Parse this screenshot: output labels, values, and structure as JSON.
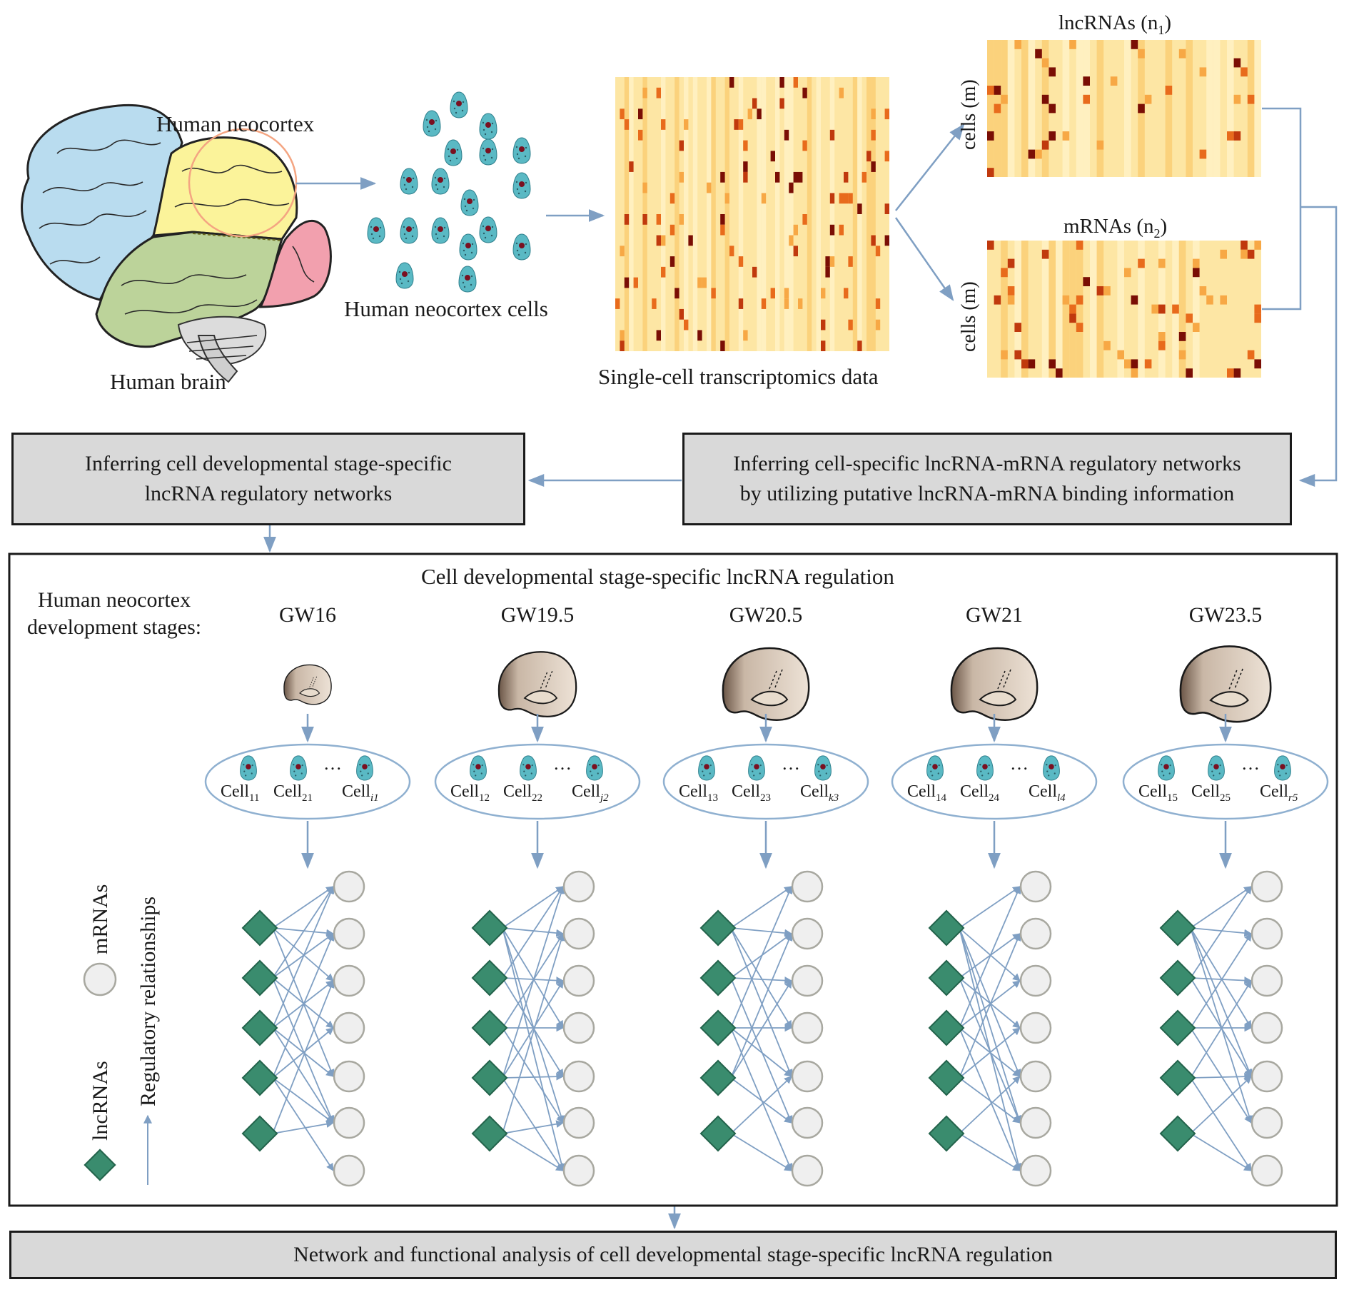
{
  "top": {
    "brain_label": "Human brain",
    "region_label": "Human neocortex",
    "cells_label": "Human neocortex cells",
    "data_label": "Single-cell transcriptomics data",
    "lnc_matrix_title": "lncRNAs (n",
    "lnc_matrix_sub": "1",
    "mrna_matrix_title": "mRNAs (n",
    "mrna_matrix_sub": "2",
    "paren_close": ")",
    "rows_label_a": "cells (m)",
    "rows_label_b": "cells (m)"
  },
  "boxes": {
    "left_line1": "Inferring cell developmental stage-specific",
    "left_line2": "lncRNA regulatory networks",
    "right_line1": "Inferring cell-specific lncRNA-mRNA regulatory networks",
    "right_line2": "by utilizing putative lncRNA-mRNA binding information",
    "bottom": "Network and functional analysis of cell developmental stage-specific lncRNA regulation"
  },
  "panel": {
    "title": "Cell developmental stage-specific lncRNA regulation",
    "stages_label_line1": "Human neocortex",
    "stages_label_line2": "development stages:",
    "legend_mrna": "mRNAs",
    "legend_lnc": "lncRNAs",
    "legend_edge": "Regulatory relationships",
    "ellipsis": "…"
  },
  "stages": [
    {
      "name": "GW16",
      "cells": [
        [
          "Cell",
          "11"
        ],
        [
          "Cell",
          "21"
        ],
        [
          "Cell",
          "i1"
        ]
      ]
    },
    {
      "name": "GW19.5",
      "cells": [
        [
          "Cell",
          "12"
        ],
        [
          "Cell",
          "22"
        ],
        [
          "Cell",
          "j2"
        ]
      ]
    },
    {
      "name": "GW20.5",
      "cells": [
        [
          "Cell",
          "13"
        ],
        [
          "Cell",
          "23"
        ],
        [
          "Cell",
          "k3"
        ]
      ]
    },
    {
      "name": "GW21",
      "cells": [
        [
          "Cell",
          "14"
        ],
        [
          "Cell",
          "24"
        ],
        [
          "Cell",
          "l4"
        ]
      ]
    },
    {
      "name": "GW23.5",
      "cells": [
        [
          "Cell",
          "15"
        ],
        [
          "Cell",
          "25"
        ],
        [
          "Cell",
          "r5"
        ]
      ]
    }
  ],
  "colors": {
    "arrow": "#7f9fc3",
    "lnc": "#3a8c6e",
    "mrna_fill": "#efefef",
    "mrna_stroke": "#a8a8a0",
    "cell": "#5ab9c4",
    "nucleus": "#7a1020",
    "heat": [
      "#fde6a4",
      "#fbd27c",
      "#f7a845",
      "#e86b1c",
      "#c0390d",
      "#7a0e05"
    ],
    "brain_front": "#b9dcef",
    "brain_neocortex": "#fbf39a",
    "brain_temporal": "#bcd39a",
    "brain_occipital": "#f2a0ae"
  }
}
